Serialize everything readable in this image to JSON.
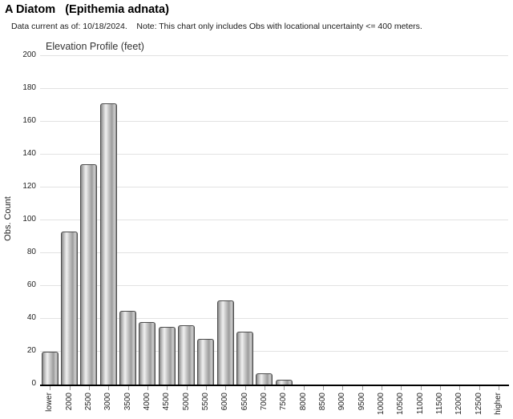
{
  "header": {
    "title": "A Diatom   (Epithemia adnata)",
    "subtitle": "Data current as of: 10/18/2024.    Note: This chart only includes Obs with locational uncertainty <= 400 meters."
  },
  "chart_data": {
    "type": "bar",
    "title": "Elevation Profile (feet)",
    "xlabel": "",
    "ylabel": "Obs. Count",
    "categories": [
      "lower",
      "2000",
      "2500",
      "3000",
      "3500",
      "4000",
      "4500",
      "5000",
      "5500",
      "6000",
      "6500",
      "7000",
      "7500",
      "8000",
      "8500",
      "9000",
      "9500",
      "10000",
      "10500",
      "11000",
      "11500",
      "12000",
      "12500",
      "higher"
    ],
    "values": [
      20,
      93,
      134,
      171,
      45,
      38,
      35,
      36,
      28,
      51,
      32,
      7,
      3,
      0,
      0,
      0,
      0,
      0,
      0,
      0,
      0,
      0,
      0,
      0
    ],
    "ylim": [
      0,
      200
    ],
    "ytick_step": 20,
    "grid": true,
    "legend": "none",
    "colors": {
      "bar_border": "#4d4d4d",
      "bar_highlight": "#f0f0f0",
      "bar_shadow": "#858585",
      "gridline": "#e2e2e2",
      "axis_line": "#000000",
      "text": "#222222"
    }
  }
}
